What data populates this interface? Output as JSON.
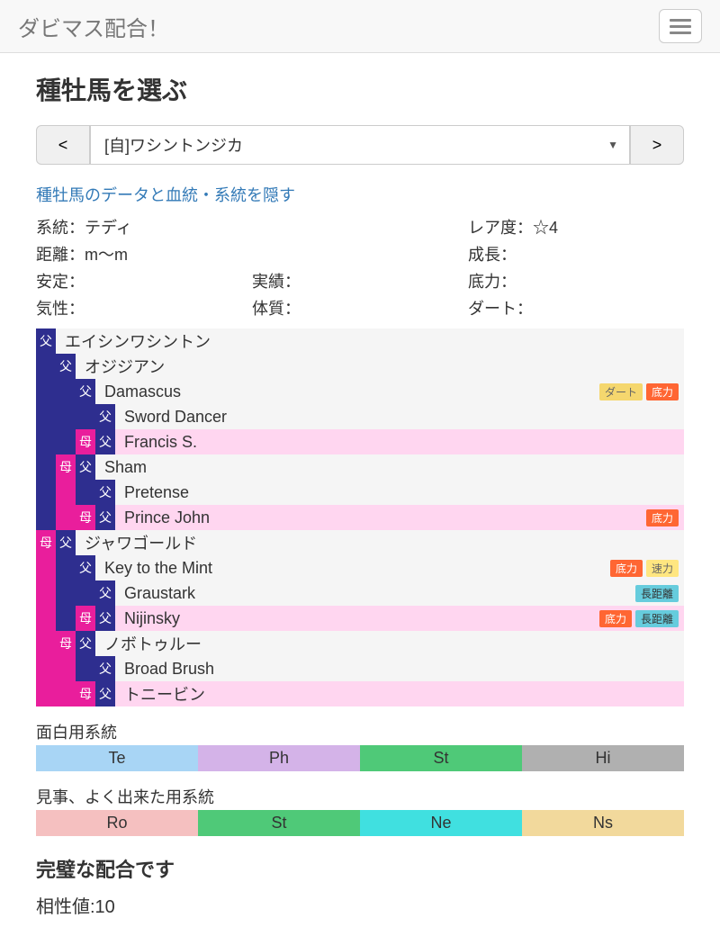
{
  "navbar": {
    "brand": "ダビマス配合！"
  },
  "page": {
    "title": "種牡馬を選ぶ",
    "prev": "<",
    "next": ">",
    "selected": "[自]ワシントンジカ",
    "toggle_link": "種牡馬のデータと血統・系統を隠す"
  },
  "info": {
    "lineage": "系統：テディ",
    "rarity": "レア度：☆4",
    "distance": "距離：m～m",
    "growth": "成長：",
    "stability": "安定：",
    "record": "実績：",
    "stamina": "底力：",
    "temper": "気性：",
    "health": "体質：",
    "dirt": "ダート："
  },
  "pedigree": [
    {
      "indent": [],
      "tag": "f",
      "name": "エイシンワシントン",
      "badges": [],
      "pink": false
    },
    {
      "indent": [
        "f"
      ],
      "tag": "f",
      "name": "オジジアン",
      "badges": [],
      "pink": false
    },
    {
      "indent": [
        "f",
        "f"
      ],
      "tag": "f",
      "name": "Damascus",
      "badges": [
        "dirt",
        "teiryoku"
      ],
      "pink": false
    },
    {
      "indent": [
        "f",
        "f",
        "f"
      ],
      "tag": "f",
      "name": "Sword Dancer",
      "badges": [],
      "pink": false
    },
    {
      "indent": [
        "f",
        "f"
      ],
      "tag": "m",
      "tag2": "f",
      "name": "Francis S.",
      "badges": [],
      "pink": true
    },
    {
      "indent": [
        "f"
      ],
      "tag": "m",
      "tag2": "f",
      "name": "Sham",
      "badges": [],
      "pink": false
    },
    {
      "indent": [
        "f",
        "m",
        "f"
      ],
      "tag": "f",
      "name": "Pretense",
      "badges": [],
      "pink": false
    },
    {
      "indent": [
        "f",
        "m"
      ],
      "tag": "m",
      "tag2": "f",
      "name": "Prince John",
      "badges": [
        "teiryoku"
      ],
      "pink": true
    },
    {
      "indent": [],
      "tag": "m",
      "tag2": "f",
      "name": "ジャワゴールド",
      "badges": [],
      "pink": false
    },
    {
      "indent": [
        "m",
        "f"
      ],
      "tag": "f",
      "name": "Key to the Mint",
      "badges": [
        "teiryoku",
        "sokuryoku"
      ],
      "pink": false
    },
    {
      "indent": [
        "m",
        "f",
        "f"
      ],
      "tag": "f",
      "name": "Graustark",
      "badges": [
        "chokyori"
      ],
      "pink": false
    },
    {
      "indent": [
        "m",
        "f"
      ],
      "tag": "m",
      "tag2": "f",
      "name": "Nijinsky",
      "badges": [
        "teiryoku",
        "chokyori"
      ],
      "pink": true
    },
    {
      "indent": [
        "m"
      ],
      "tag": "m",
      "tag2": "f",
      "name": "ノボトゥルー",
      "badges": [],
      "pink": false
    },
    {
      "indent": [
        "m",
        "m",
        "f"
      ],
      "tag": "f",
      "name": "Broad Brush",
      "badges": [],
      "pink": false
    },
    {
      "indent": [
        "m",
        "m"
      ],
      "tag": "m",
      "tag2": "f",
      "name": "トニービン",
      "badges": [],
      "pink": true
    }
  ],
  "badge_labels": {
    "dirt": "ダート",
    "teiryoku": "底力",
    "sokuryoku": "速力",
    "chokyori": "長距離"
  },
  "lines1_label": "面白用系統",
  "lines1": [
    {
      "code": "Te",
      "cls": "c-te"
    },
    {
      "code": "Ph",
      "cls": "c-ph"
    },
    {
      "code": "St",
      "cls": "c-st"
    },
    {
      "code": "Hi",
      "cls": "c-hi"
    }
  ],
  "lines2_label": "見事、よく出来た用系統",
  "lines2": [
    {
      "code": "Ro",
      "cls": "c-ro"
    },
    {
      "code": "St",
      "cls": "c-st2"
    },
    {
      "code": "Ne",
      "cls": "c-ne"
    },
    {
      "code": "Ns",
      "cls": "c-ns"
    }
  ],
  "result": {
    "heading": "完璧な配合です",
    "score": "相性値:10"
  }
}
